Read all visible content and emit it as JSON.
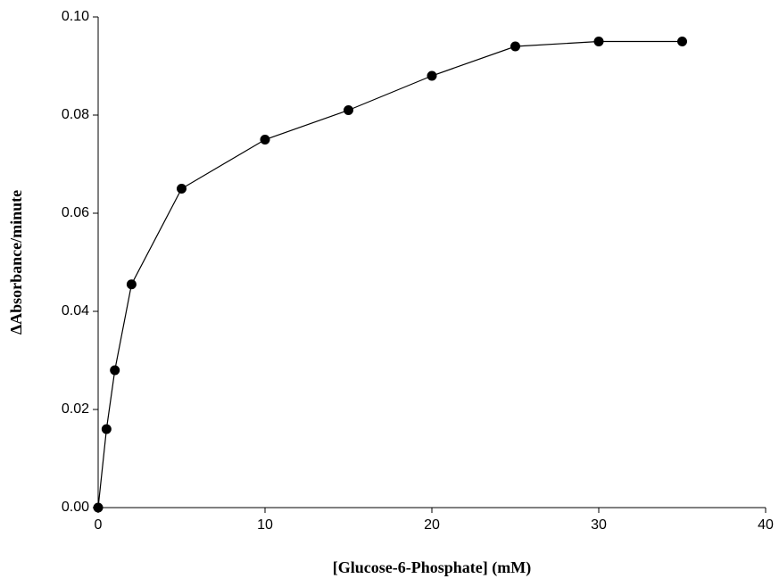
{
  "chart_data": {
    "type": "line",
    "x_label": "[Glucose-6-Phosphate] (mM)",
    "y_label": "ΔAbsorbance/minute",
    "x": [
      0,
      0.5,
      1,
      2,
      5,
      10,
      15,
      20,
      25,
      30,
      35
    ],
    "values": [
      0.0,
      0.016,
      0.028,
      0.0455,
      0.065,
      0.075,
      0.081,
      0.088,
      0.094,
      0.095,
      0.095
    ],
    "color": "#000000",
    "markers": true,
    "grid": false,
    "xlim": [
      0,
      40
    ],
    "xticks": [
      0,
      10,
      20,
      30,
      40
    ],
    "ylim": [
      0,
      0.1
    ],
    "yticks": [
      {
        "value": 0,
        "label": "0.00"
      },
      {
        "value": 0.02,
        "label": "0.02"
      },
      {
        "value": 0.04,
        "label": "0.04"
      },
      {
        "value": 0.06,
        "label": "0.06"
      },
      {
        "value": 0.08,
        "label": "0.08"
      },
      {
        "value": 0.1,
        "label": "0.10"
      }
    ]
  }
}
